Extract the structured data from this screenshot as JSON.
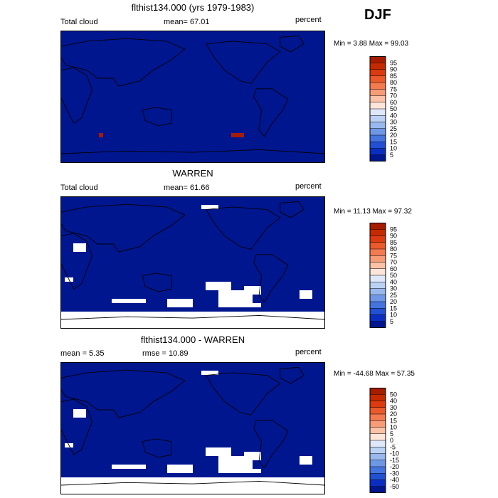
{
  "season": "DJF",
  "panels": [
    {
      "id": "model",
      "title": "flthist134.000 (yrs 1979-1983)",
      "left_label": "Total cloud",
      "center_label": "mean=  67.01",
      "right_label": "percent",
      "minmax": "Min =   3.88 Max =  99.03",
      "colorbar_levels": [
        "95",
        "90",
        "85",
        "80",
        "75",
        "70",
        "60",
        "50",
        "40",
        "30",
        "25",
        "20",
        "15",
        "10",
        "5"
      ],
      "colorbar_colors": [
        "#a51c00",
        "#c62a00",
        "#dc3a10",
        "#ea5a2a",
        "#f47a50",
        "#f89c78",
        "#fbc2a8",
        "#fde6d9",
        "#dfe8f8",
        "#bcd2f3",
        "#98b8ee",
        "#6e97e6",
        "#4674de",
        "#2250d2",
        "#0a2fc0",
        "#00168f"
      ]
    },
    {
      "id": "obs",
      "title": "WARREN",
      "left_label": "Total cloud",
      "center_label": "mean=  61.66",
      "right_label": "percent",
      "minmax": "Min =  11.13 Max =  97.32",
      "colorbar_levels": [
        "95",
        "90",
        "85",
        "80",
        "75",
        "70",
        "60",
        "50",
        "40",
        "30",
        "25",
        "20",
        "15",
        "10",
        "5"
      ],
      "colorbar_colors": [
        "#a51c00",
        "#c62a00",
        "#dc3a10",
        "#ea5a2a",
        "#f47a50",
        "#f89c78",
        "#fbc2a8",
        "#fde6d9",
        "#dfe8f8",
        "#bcd2f3",
        "#98b8ee",
        "#6e97e6",
        "#4674de",
        "#2250d2",
        "#0a2fc0",
        "#00168f"
      ]
    },
    {
      "id": "diff",
      "title": "flthist134.000 - WARREN",
      "left_label": "mean =   5.35",
      "center_label": "rmse =  10.89",
      "right_label": "percent",
      "minmax": "Min = -44.68 Max =  57.35",
      "colorbar_levels": [
        "50",
        "40",
        "30",
        "20",
        "15",
        "10",
        "5",
        "0",
        "-5",
        "-10",
        "-15",
        "-20",
        "-30",
        "-40",
        "-50"
      ],
      "colorbar_colors": [
        "#a51c00",
        "#c62a00",
        "#dc3a10",
        "#ea5a2a",
        "#f47a50",
        "#f89c78",
        "#fbc2a8",
        "#fde6d9",
        "#dfe8f8",
        "#bcd2f3",
        "#98b8ee",
        "#6e97e6",
        "#4674de",
        "#2250d2",
        "#0a2fc0",
        "#00168f"
      ]
    }
  ]
}
